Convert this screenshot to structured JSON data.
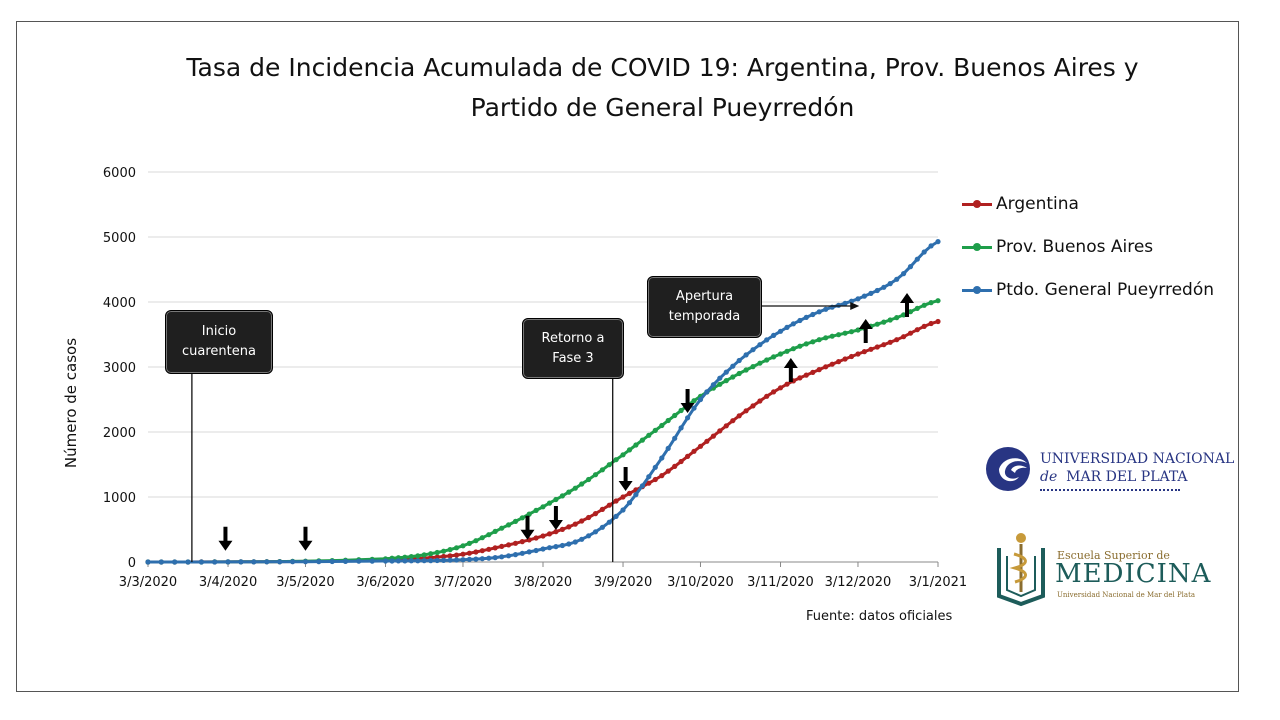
{
  "title": {
    "line1": "Tasa de Incidencia Acumulada de COVID 19: Argentina, Prov. Buenos Aires  y",
    "line2": "Partido de General Pueyrredón"
  },
  "source": "Fuente: datos oficiales",
  "callouts": {
    "inicio": "Inicio\ncuarentena",
    "retorno": "Retorno a\nFase 3",
    "apertura": "Apertura\ntemporada"
  },
  "logos": {
    "unmdp": {
      "line1": "UNIVERSIDAD NACIONAL",
      "line2_de": "de",
      "line2": "MAR DEL PLATA"
    },
    "esm": {
      "line1": "Escuela Superior de",
      "line2": "MEDICINA",
      "line3": "Universidad Nacional de Mar del Plata"
    }
  },
  "chart_data": {
    "type": "line",
    "title": "Tasa de Incidencia Acumulada de COVID 19: Argentina, Prov. Buenos Aires  y Partido de General Pueyrredón",
    "xlabel": "",
    "ylabel": "Número de casos",
    "ylim": [
      0,
      6000
    ],
    "yticks": [
      0,
      1000,
      2000,
      3000,
      4000,
      5000,
      6000
    ],
    "grid": true,
    "legend_position": "right",
    "x_tick_labels": [
      "3/3/2020",
      "3/4/2020",
      "3/5/2020",
      "3/6/2020",
      "3/7/2020",
      "3/8/2020",
      "3/9/2020",
      "3/10/2020",
      "3/11/2020",
      "3/12/2020",
      "3/1/2021"
    ],
    "x_tick_dates": [
      "2020-03-03",
      "2020-04-03",
      "2020-05-03",
      "2020-06-03",
      "2020-07-03",
      "2020-08-03",
      "2020-09-03",
      "2020-10-03",
      "2020-11-03",
      "2020-12-03",
      "2021-01-03"
    ],
    "x_range": [
      "2020-03-03",
      "2021-01-03"
    ],
    "series": [
      {
        "name": "Argentina",
        "color": "#b02020",
        "points": [
          [
            "2020-03-03",
            0
          ],
          [
            "2020-04-03",
            2
          ],
          [
            "2020-05-03",
            10
          ],
          [
            "2020-06-03",
            30
          ],
          [
            "2020-06-18",
            60
          ],
          [
            "2020-07-03",
            120
          ],
          [
            "2020-07-18",
            240
          ],
          [
            "2020-08-03",
            400
          ],
          [
            "2020-08-18",
            630
          ],
          [
            "2020-09-03",
            1000
          ],
          [
            "2020-09-18",
            1330
          ],
          [
            "2020-10-03",
            1780
          ],
          [
            "2020-10-18",
            2250
          ],
          [
            "2020-11-03",
            2680
          ],
          [
            "2020-11-18",
            2960
          ],
          [
            "2020-12-03",
            3200
          ],
          [
            "2020-12-18",
            3420
          ],
          [
            "2021-01-03",
            3700
          ]
        ]
      },
      {
        "name": "Prov. Buenos Aires",
        "color": "#1e9e4a",
        "points": [
          [
            "2020-03-03",
            0
          ],
          [
            "2020-04-03",
            2
          ],
          [
            "2020-05-03",
            12
          ],
          [
            "2020-06-03",
            50
          ],
          [
            "2020-06-18",
            110
          ],
          [
            "2020-07-03",
            250
          ],
          [
            "2020-07-18",
            520
          ],
          [
            "2020-08-03",
            850
          ],
          [
            "2020-08-18",
            1200
          ],
          [
            "2020-09-03",
            1650
          ],
          [
            "2020-09-18",
            2100
          ],
          [
            "2020-10-03",
            2550
          ],
          [
            "2020-10-18",
            2900
          ],
          [
            "2020-11-03",
            3200
          ],
          [
            "2020-11-18",
            3420
          ],
          [
            "2020-12-03",
            3570
          ],
          [
            "2020-12-18",
            3760
          ],
          [
            "2021-01-03",
            4020
          ]
        ]
      },
      {
        "name": "Ptdo. General Pueyrredón",
        "color": "#2e6fae",
        "points": [
          [
            "2020-03-03",
            0
          ],
          [
            "2020-04-03",
            1
          ],
          [
            "2020-05-03",
            5
          ],
          [
            "2020-06-03",
            15
          ],
          [
            "2020-06-18",
            20
          ],
          [
            "2020-07-03",
            35
          ],
          [
            "2020-07-18",
            80
          ],
          [
            "2020-08-03",
            200
          ],
          [
            "2020-08-18",
            350
          ],
          [
            "2020-09-03",
            800
          ],
          [
            "2020-09-18",
            1600
          ],
          [
            "2020-10-03",
            2500
          ],
          [
            "2020-10-18",
            3100
          ],
          [
            "2020-11-03",
            3550
          ],
          [
            "2020-11-18",
            3850
          ],
          [
            "2020-12-03",
            4050
          ],
          [
            "2020-12-18",
            4350
          ],
          [
            "2021-01-03",
            4930
          ]
        ]
      }
    ],
    "annotations": [
      {
        "label": "Inicio cuarentena",
        "date": "2020-03-20"
      },
      {
        "label": "Retorno a Fase 3",
        "date": "2020-08-30"
      },
      {
        "label": "Apertura temporada",
        "date": "2020-11-18"
      }
    ],
    "arrows": [
      {
        "date": "2020-04-02",
        "value": 80,
        "direction": "down"
      },
      {
        "date": "2020-05-03",
        "value": 80,
        "direction": "down"
      },
      {
        "date": "2020-07-28",
        "value": 250,
        "direction": "down"
      },
      {
        "date": "2020-08-08",
        "value": 400,
        "direction": "down"
      },
      {
        "date": "2020-09-04",
        "value": 1000,
        "direction": "down"
      },
      {
        "date": "2020-09-28",
        "value": 2200,
        "direction": "down"
      },
      {
        "date": "2020-11-07",
        "value": 3200,
        "direction": "up"
      },
      {
        "date": "2020-12-06",
        "value": 3800,
        "direction": "up"
      },
      {
        "date": "2020-12-22",
        "value": 4200,
        "direction": "up"
      }
    ]
  }
}
